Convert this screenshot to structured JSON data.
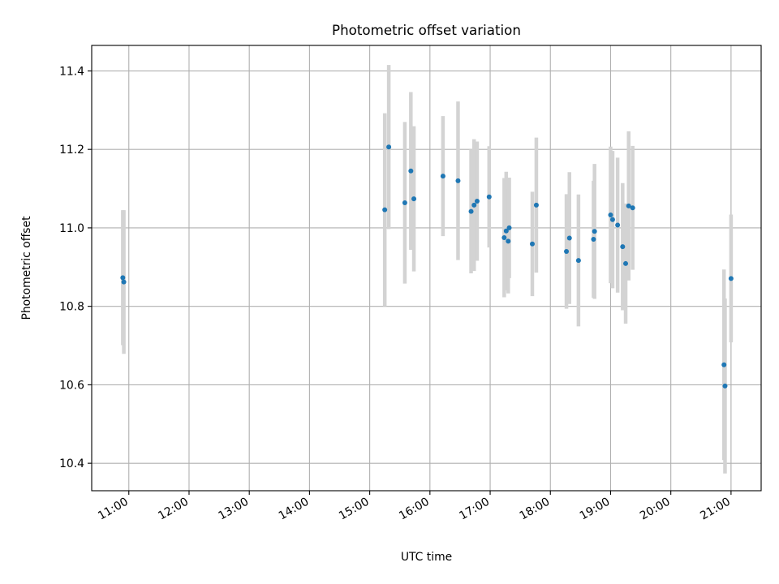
{
  "chart_data": {
    "type": "scatter",
    "title": "Photometric offset variation",
    "xlabel": "UTC time",
    "ylabel": "Photometric offset",
    "xlim": [
      "10:23",
      "21:30"
    ],
    "ylim": [
      10.33,
      11.465
    ],
    "x_ticks": [
      "11:00",
      "12:00",
      "13:00",
      "14:00",
      "15:00",
      "16:00",
      "17:00",
      "18:00",
      "19:00",
      "20:00",
      "21:00"
    ],
    "y_ticks": [
      10.4,
      10.6,
      10.8,
      11.0,
      11.2,
      11.4
    ],
    "grid": true,
    "colors": {
      "point": "#1f77b4",
      "error_bar": "#d3d3d3",
      "grid": "#b0b0b0"
    },
    "series": [
      {
        "points": [
          {
            "x": "10:54",
            "y": 10.873,
            "err": 0.172
          },
          {
            "x": "10:55",
            "y": 10.862,
            "err": 0.183
          },
          {
            "x": "15:15",
            "y": 11.046,
            "err": 0.246
          },
          {
            "x": "15:19",
            "y": 11.206,
            "err": 0.209
          },
          {
            "x": "15:35",
            "y": 11.064,
            "err": 0.206
          },
          {
            "x": "15:41",
            "y": 11.145,
            "err": 0.201
          },
          {
            "x": "15:44",
            "y": 11.074,
            "err": 0.185
          },
          {
            "x": "16:13",
            "y": 11.132,
            "err": 0.153
          },
          {
            "x": "16:28",
            "y": 11.12,
            "err": 0.202
          },
          {
            "x": "16:41",
            "y": 11.042,
            "err": 0.158
          },
          {
            "x": "16:44",
            "y": 11.058,
            "err": 0.168
          },
          {
            "x": "16:47",
            "y": 11.068,
            "err": 0.152
          },
          {
            "x": "16:59",
            "y": 11.079,
            "err": 0.129
          },
          {
            "x": "17:14",
            "y": 10.975,
            "err": 0.152
          },
          {
            "x": "17:16",
            "y": 10.992,
            "err": 0.151
          },
          {
            "x": "17:18",
            "y": 10.966,
            "err": 0.133
          },
          {
            "x": "17:19",
            "y": 11.0,
            "err": 0.128
          },
          {
            "x": "17:42",
            "y": 10.959,
            "err": 0.133
          },
          {
            "x": "17:46",
            "y": 11.058,
            "err": 0.172
          },
          {
            "x": "18:16",
            "y": 10.94,
            "err": 0.146
          },
          {
            "x": "18:19",
            "y": 10.974,
            "err": 0.168
          },
          {
            "x": "18:28",
            "y": 10.917,
            "err": 0.168
          },
          {
            "x": "18:43",
            "y": 10.971,
            "err": 0.149
          },
          {
            "x": "18:44",
            "y": 10.991,
            "err": 0.172
          },
          {
            "x": "19:00",
            "y": 11.033,
            "err": 0.174
          },
          {
            "x": "19:02",
            "y": 11.021,
            "err": 0.175
          },
          {
            "x": "19:07",
            "y": 11.007,
            "err": 0.172
          },
          {
            "x": "19:12",
            "y": 10.952,
            "err": 0.162
          },
          {
            "x": "19:15",
            "y": 10.909,
            "err": 0.153
          },
          {
            "x": "19:18",
            "y": 11.056,
            "err": 0.19
          },
          {
            "x": "19:22",
            "y": 11.051,
            "err": 0.158
          },
          {
            "x": "20:53",
            "y": 10.651,
            "err": 0.243
          },
          {
            "x": "20:54",
            "y": 10.597,
            "err": 0.223
          },
          {
            "x": "21:00",
            "y": 10.871,
            "err": 0.163
          }
        ]
      }
    ]
  }
}
